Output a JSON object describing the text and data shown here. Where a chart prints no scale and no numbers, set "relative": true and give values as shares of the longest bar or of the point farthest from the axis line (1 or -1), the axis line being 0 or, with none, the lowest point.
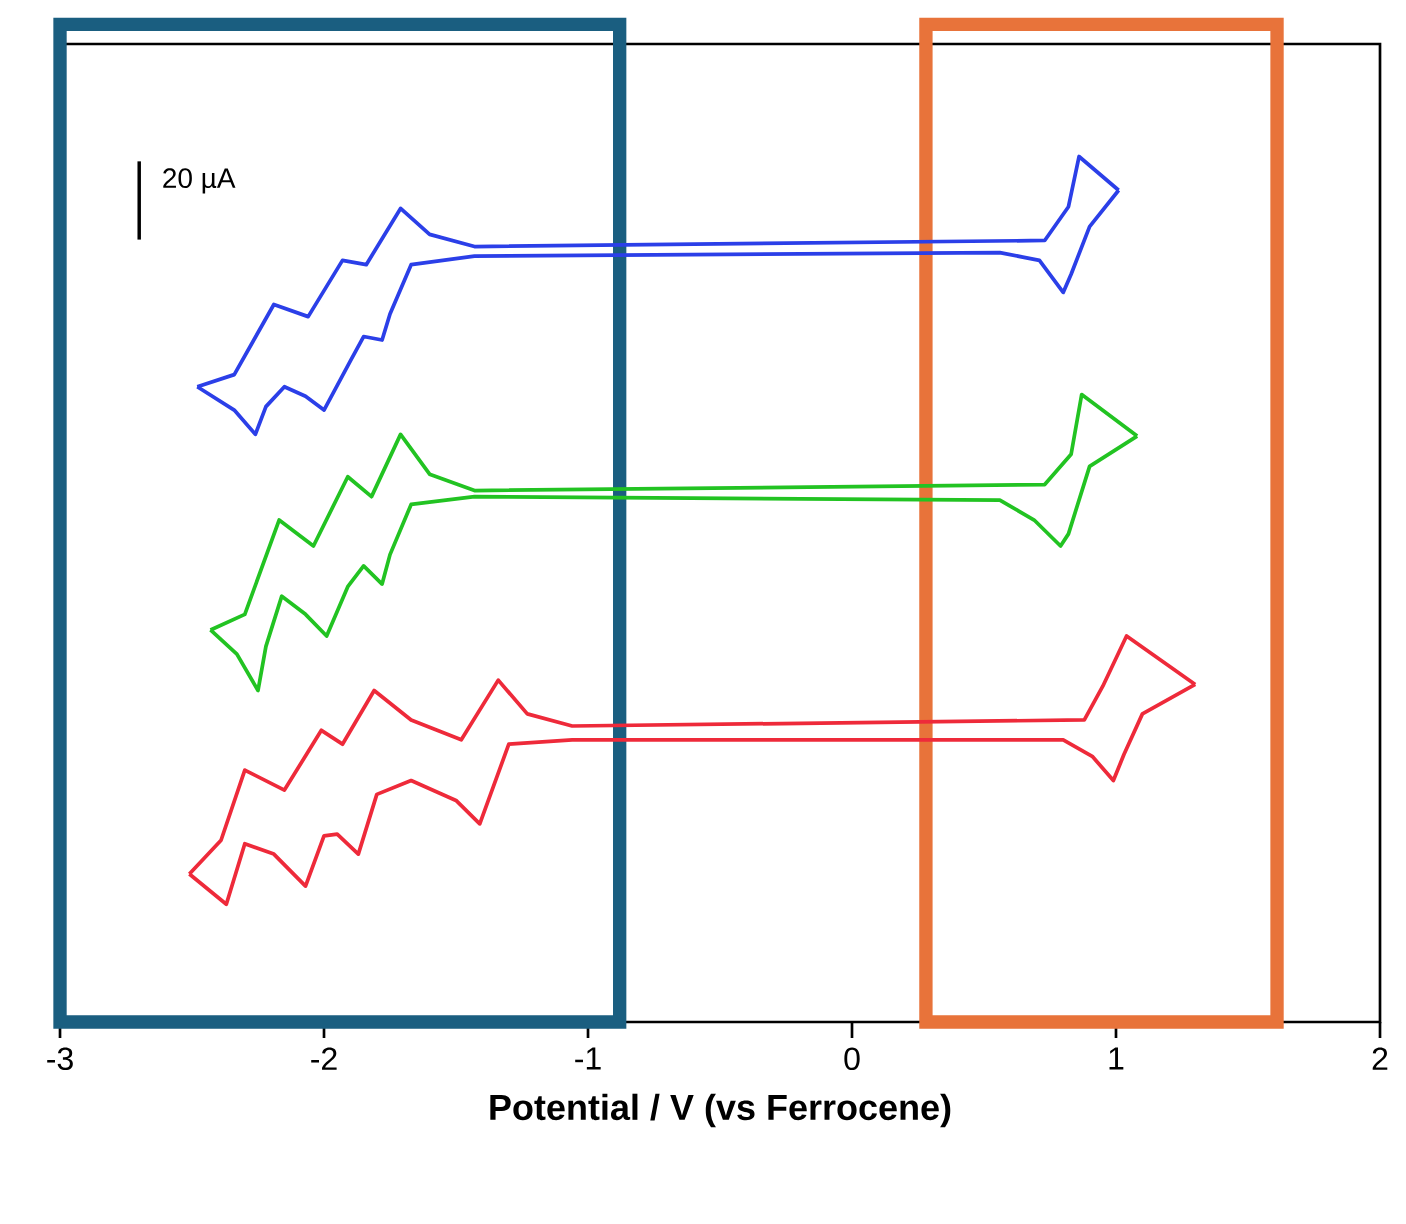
{
  "chart_data": {
    "type": "line",
    "relative": true,
    "xlabel": "Potential / V (vs Ferrocene)",
    "xlim": [
      -3,
      2
    ],
    "xticks": [
      -3,
      -2,
      -1,
      0,
      1,
      2
    ],
    "marker": "none",
    "line_style": "solid",
    "annotations": [
      "20 µA"
    ],
    "series": [
      {
        "color": "#2b3fe8",
        "x": [
          -2.48,
          -2.34,
          -2.19,
          -2.06,
          -1.93,
          -1.84,
          -1.71,
          -1.6,
          -1.43,
          0.73,
          0.82,
          0.86,
          1.01,
          0.9,
          0.83,
          0.8,
          0.71,
          0.56,
          -1.43,
          -1.67,
          -1.75,
          -1.78,
          -1.85,
          -1.9,
          -2.0,
          -2.07,
          -2.15,
          -2.22,
          -2.26,
          -2.34,
          -2.48
        ],
        "values": [
          0.734,
          0.748,
          0.829,
          0.815,
          0.88,
          0.875,
          0.94,
          0.91,
          0.896,
          0.903,
          0.942,
          1.0,
          0.961,
          0.919,
          0.864,
          0.843,
          0.88,
          0.889,
          0.885,
          0.875,
          0.818,
          0.788,
          0.792,
          0.764,
          0.707,
          0.723,
          0.734,
          0.711,
          0.679,
          0.707,
          0.734
        ]
      },
      {
        "color": "#22c322",
        "x": [
          -2.43,
          -2.3,
          -2.17,
          -2.04,
          -1.91,
          -1.82,
          -1.71,
          -1.6,
          -1.43,
          0.73,
          0.83,
          0.87,
          1.08,
          0.9,
          0.82,
          0.79,
          0.69,
          0.56,
          -1.43,
          -1.67,
          -1.75,
          -1.78,
          -1.85,
          -1.91,
          -1.99,
          -2.07,
          -2.16,
          -2.22,
          -2.25,
          -2.33,
          -2.43
        ],
        "values": [
          0.453,
          0.471,
          0.58,
          0.55,
          0.63,
          0.607,
          0.679,
          0.633,
          0.614,
          0.621,
          0.656,
          0.725,
          0.677,
          0.642,
          0.564,
          0.55,
          0.58,
          0.603,
          0.607,
          0.598,
          0.54,
          0.506,
          0.527,
          0.503,
          0.446,
          0.471,
          0.492,
          0.434,
          0.383,
          0.425,
          0.453
        ]
      },
      {
        "color": "#ee2a3a",
        "x": [
          -2.51,
          -2.39,
          -2.3,
          -2.15,
          -2.01,
          -1.93,
          -1.81,
          -1.67,
          -1.48,
          -1.34,
          -1.23,
          -1.06,
          0.88,
          0.95,
          1.04,
          1.3,
          1.1,
          1.03,
          0.99,
          0.91,
          0.8,
          -1.06,
          -1.3,
          -1.41,
          -1.5,
          -1.67,
          -1.8,
          -1.87,
          -1.95,
          -2.0,
          -2.07,
          -2.19,
          -2.3,
          -2.37,
          -2.51
        ],
        "values": [
          0.171,
          0.21,
          0.291,
          0.268,
          0.337,
          0.321,
          0.383,
          0.349,
          0.326,
          0.395,
          0.356,
          0.342,
          0.349,
          0.388,
          0.446,
          0.39,
          0.356,
          0.309,
          0.279,
          0.307,
          0.326,
          0.326,
          0.321,
          0.229,
          0.256,
          0.279,
          0.263,
          0.194,
          0.217,
          0.215,
          0.157,
          0.194,
          0.206,
          0.136,
          0.171
        ]
      }
    ]
  }
}
